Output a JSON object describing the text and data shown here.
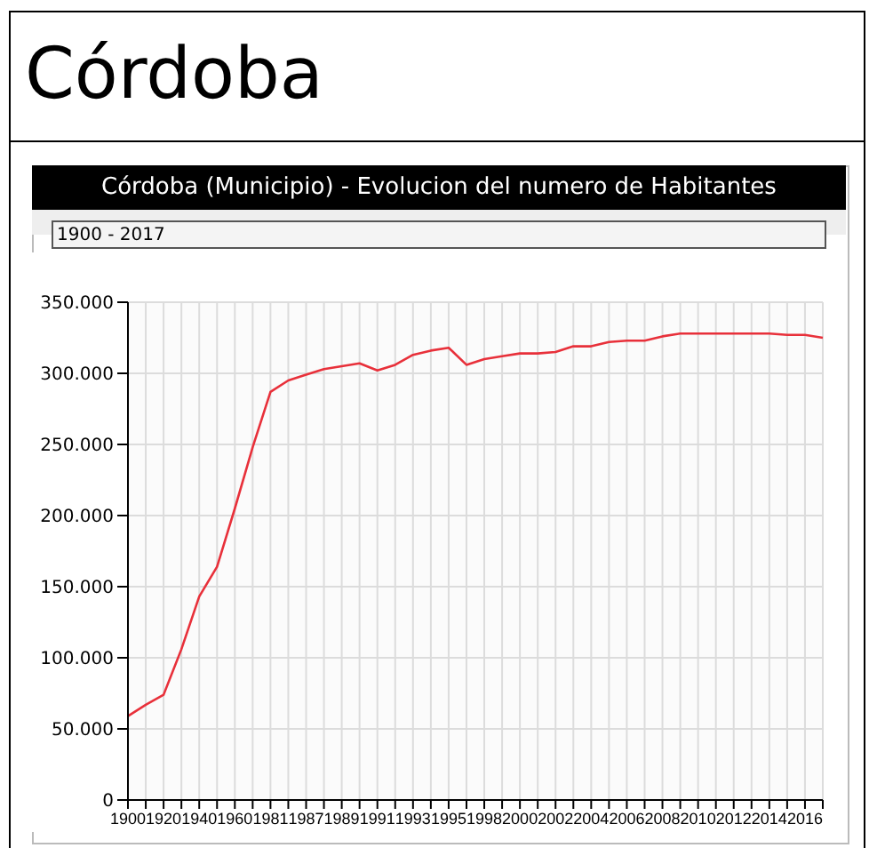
{
  "chart_data": {
    "type": "line",
    "title": "Córdoba",
    "subtitle": "Córdoba (Municipio) - Evolucion del numero de Habitantes",
    "annotations": [
      "1900 - 2017"
    ],
    "categories": [
      "1900",
      null,
      "1920",
      null,
      "1940",
      null,
      "1960",
      null,
      "1981",
      null,
      "1987",
      null,
      "1989",
      null,
      "1991",
      null,
      "1993",
      null,
      "1995",
      null,
      "1998",
      null,
      "2000",
      null,
      "2002",
      null,
      "2004",
      null,
      "2006",
      null,
      "2008",
      null,
      "2010",
      null,
      "2012",
      null,
      "2014",
      null,
      "2016",
      null
    ],
    "series": [
      {
        "color": "#e8303a",
        "values": [
          59000,
          67000,
          74000,
          106000,
          143000,
          164000,
          205000,
          248000,
          287000,
          295000,
          299000,
          303000,
          305000,
          307000,
          302000,
          306000,
          313000,
          316000,
          318000,
          306000,
          310000,
          312000,
          314000,
          314000,
          315000,
          319000,
          319000,
          322000,
          323000,
          323000,
          326000,
          328000,
          328000,
          328000,
          328000,
          328000,
          328000,
          327000,
          327000,
          325000
        ]
      }
    ],
    "ylim": [
      0,
      350000
    ],
    "yticks": [
      0,
      {
        "value": 50000,
        "label": "50.000"
      },
      {
        "value": 100000,
        "label": "100.000"
      },
      {
        "value": 150000,
        "label": "150.000"
      },
      {
        "value": 200000,
        "label": "200.000"
      },
      {
        "value": 250000,
        "label": "250.000"
      },
      {
        "value": 300000,
        "label": "300.000"
      },
      {
        "value": 350000,
        "label": "350.000"
      }
    ],
    "grid": true,
    "marker": "none",
    "line_style": "solid"
  }
}
